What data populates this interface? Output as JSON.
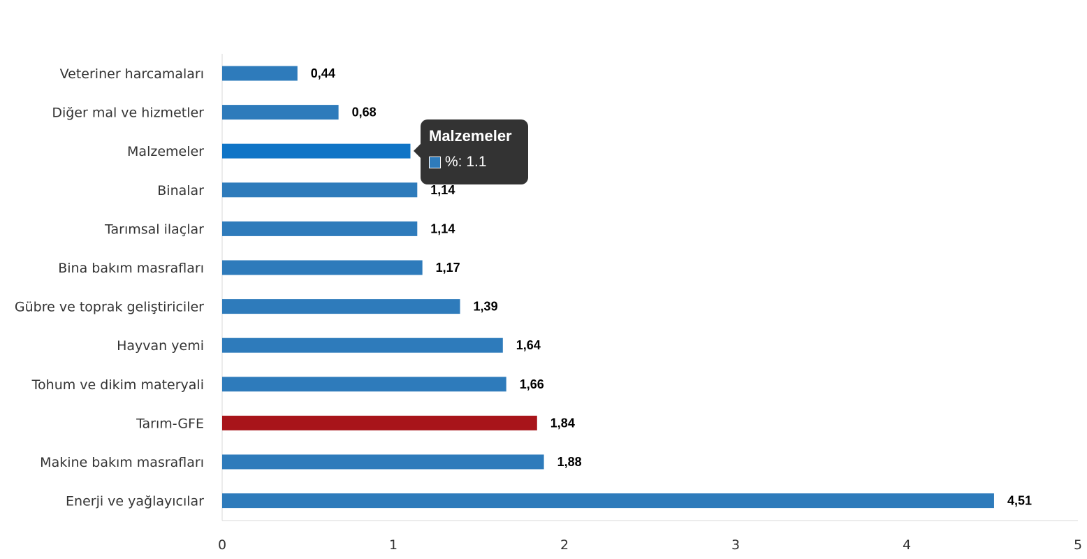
{
  "chart_data": {
    "type": "bar",
    "orientation": "horizontal",
    "categories": [
      "Veteriner harcamaları",
      "Diğer mal ve hizmetler",
      "Malzemeler",
      "Binalar",
      "Tarımsal ilaçlar",
      "Bina bakım masrafları",
      "Gübre ve toprak geliştiriciler",
      "Hayvan yemi",
      "Tohum ve dikim materyali",
      "Tarım-GFE",
      "Makine bakım masrafları",
      "Enerji  ve yağlayıcılar"
    ],
    "values": [
      0.44,
      0.68,
      1.1,
      1.14,
      1.14,
      1.17,
      1.39,
      1.64,
      1.66,
      1.84,
      1.88,
      4.51
    ],
    "value_labels": [
      "0,44",
      "0,68",
      "1,10",
      "1,14",
      "1,14",
      "1,17",
      "1,39",
      "1,64",
      "1,66",
      "1,84",
      "1,88",
      "4,51"
    ],
    "xlim": [
      0,
      5
    ],
    "xticks": [
      "0",
      "1",
      "2",
      "3",
      "4",
      "5"
    ],
    "grid": false,
    "colors": {
      "default": "#2e7bbb",
      "highlight": "#a8141a",
      "hover": "#0f74c6"
    },
    "highlight_category": "Tarım-GFE",
    "hovered_category": "Malzemeler"
  },
  "tooltip": {
    "title": "Malzemeler",
    "series_label": "%: 1.1",
    "swatch_color": "#2e7bbb"
  }
}
